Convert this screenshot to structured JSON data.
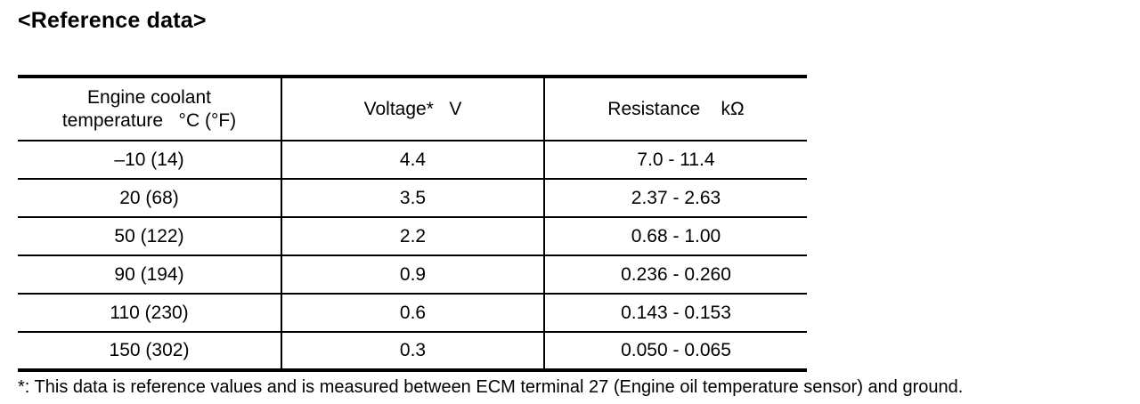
{
  "title": "<Reference data>",
  "table": {
    "headers": {
      "temperature_line1": "Engine coolant",
      "temperature_line2": "temperature   °C (°F)",
      "voltage": "Voltage*   V",
      "resistance": "Resistance    kΩ"
    },
    "rows": [
      {
        "temperature": "–10 (14)",
        "voltage": "4.4",
        "resistance": "7.0 - 11.4"
      },
      {
        "temperature": "20 (68)",
        "voltage": "3.5",
        "resistance": "2.37 - 2.63"
      },
      {
        "temperature": "50 (122)",
        "voltage": "2.2",
        "resistance": "0.68 - 1.00"
      },
      {
        "temperature": "90 (194)",
        "voltage": "0.9",
        "resistance": "0.236 - 0.260"
      },
      {
        "temperature": "110 (230)",
        "voltage": "0.6",
        "resistance": "0.143 - 0.153"
      },
      {
        "temperature": "150 (302)",
        "voltage": "0.3",
        "resistance": "0.050 - 0.065"
      }
    ]
  },
  "footnote": "*: This data is reference values and is measured between ECM terminal 27 (Engine oil temperature sensor) and ground."
}
